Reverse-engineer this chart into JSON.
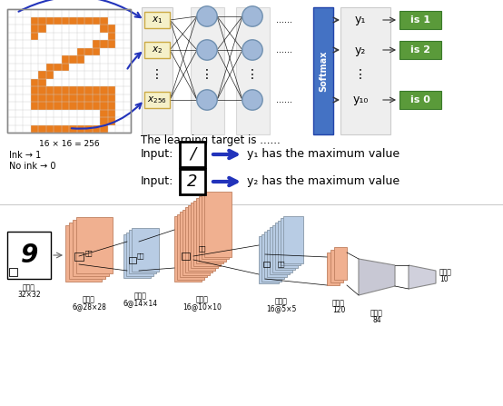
{
  "bg_color": "#ffffff",
  "orange_color": "#e87c1e",
  "input_box_color": "#f5f0c8",
  "input_box_border": "#ccaa44",
  "node_color": "#a0b8d8",
  "node_edge": "#7090b0",
  "softmax_color": "#4472c4",
  "output_box_color": "#5a9a3a",
  "gray_bg": "#e0e0e0",
  "output_gray_bg": "#e8e8e8",
  "blue_arrow": "#2233bb",
  "dark_arrow": "#333333",
  "salmon": "#f0b090",
  "light_blue_layer": "#b8cce4",
  "fc_gray": "#c8c8d4",
  "grid_line": "#cccccc",
  "orange_pixels": [
    [
      3,
      1
    ],
    [
      4,
      1
    ],
    [
      5,
      1
    ],
    [
      6,
      1
    ],
    [
      7,
      1
    ],
    [
      8,
      1
    ],
    [
      9,
      1
    ],
    [
      10,
      1
    ],
    [
      11,
      1
    ],
    [
      12,
      1
    ],
    [
      3,
      2
    ],
    [
      4,
      2
    ],
    [
      12,
      2
    ],
    [
      13,
      2
    ],
    [
      3,
      3
    ],
    [
      13,
      3
    ],
    [
      11,
      4
    ],
    [
      12,
      4
    ],
    [
      13,
      4
    ],
    [
      9,
      5
    ],
    [
      10,
      5
    ],
    [
      11,
      5
    ],
    [
      7,
      6
    ],
    [
      8,
      6
    ],
    [
      9,
      6
    ],
    [
      5,
      7
    ],
    [
      6,
      7
    ],
    [
      7,
      7
    ],
    [
      4,
      8
    ],
    [
      5,
      8
    ],
    [
      3,
      9
    ],
    [
      4,
      9
    ],
    [
      3,
      10
    ],
    [
      4,
      10
    ],
    [
      5,
      10
    ],
    [
      6,
      10
    ],
    [
      7,
      10
    ],
    [
      8,
      10
    ],
    [
      9,
      10
    ],
    [
      10,
      10
    ],
    [
      11,
      10
    ],
    [
      12,
      10
    ],
    [
      13,
      10
    ],
    [
      3,
      11
    ],
    [
      4,
      11
    ],
    [
      5,
      11
    ],
    [
      6,
      11
    ],
    [
      7,
      11
    ],
    [
      8,
      11
    ],
    [
      9,
      11
    ],
    [
      10,
      11
    ],
    [
      11,
      11
    ],
    [
      12,
      11
    ],
    [
      13,
      11
    ],
    [
      3,
      12
    ],
    [
      4,
      12
    ],
    [
      5,
      12
    ],
    [
      6,
      12
    ],
    [
      7,
      12
    ],
    [
      8,
      12
    ],
    [
      9,
      12
    ],
    [
      10,
      12
    ],
    [
      11,
      12
    ],
    [
      12,
      12
    ],
    [
      13,
      12
    ],
    [
      12,
      13
    ],
    [
      13,
      13
    ],
    [
      12,
      14
    ],
    [
      13,
      14
    ],
    [
      3,
      15
    ],
    [
      4,
      15
    ],
    [
      5,
      15
    ],
    [
      6,
      15
    ],
    [
      7,
      15
    ],
    [
      8,
      15
    ],
    [
      9,
      15
    ],
    [
      10,
      15
    ],
    [
      11,
      15
    ],
    [
      12,
      15
    ]
  ]
}
